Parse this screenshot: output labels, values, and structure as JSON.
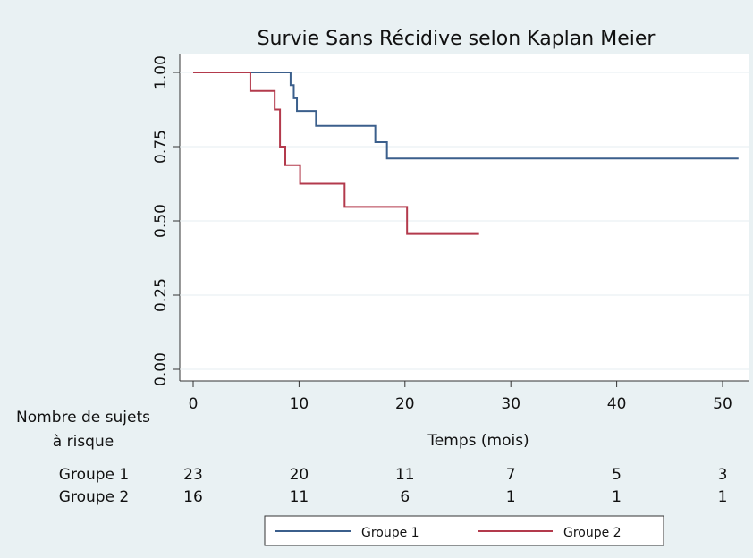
{
  "chart_data": {
    "type": "step",
    "title": "Survie Sans Récidive selon Kaplan Meier",
    "x_label": "Temps (mois)",
    "xlim": [
      0,
      50
    ],
    "ylim": [
      0,
      1
    ],
    "xticks": [
      0,
      10,
      20,
      30,
      40,
      50
    ],
    "yticks": [
      {
        "value": 0,
        "label": "0.00"
      },
      {
        "value": 0.25,
        "label": "0.25"
      },
      {
        "value": 0.5,
        "label": "0.50"
      },
      {
        "value": 0.75,
        "label": "0.75"
      },
      {
        "value": 1,
        "label": "1.00"
      }
    ],
    "grid": true,
    "series": [
      {
        "name": "Groupe 1",
        "color": "#3b5f8c",
        "x": [
          0,
          9.2,
          9.5,
          9.8,
          11.6,
          17.2,
          18.3,
          51.5
        ],
        "values": [
          1,
          0.957,
          0.913,
          0.87,
          0.82,
          0.765,
          0.71,
          0.71
        ]
      },
      {
        "name": "Groupe 2",
        "color": "#b33a4c",
        "x": [
          0,
          5.4,
          7.7,
          8.2,
          8.7,
          10.1,
          14.3,
          20.2,
          27
        ],
        "values": [
          1,
          0.9375,
          0.875,
          0.75,
          0.6875,
          0.625,
          0.547,
          0.456,
          0.456
        ]
      }
    ],
    "risk_table": {
      "label": [
        "Nombre de sujets",
        "à risque"
      ],
      "rows": [
        {
          "name": "Groupe 1",
          "counts": [
            23,
            20,
            11,
            7,
            5,
            3
          ]
        },
        {
          "name": "Groupe 2",
          "counts": [
            16,
            11,
            6,
            1,
            1,
            1
          ]
        }
      ]
    },
    "legend": "bottom"
  }
}
